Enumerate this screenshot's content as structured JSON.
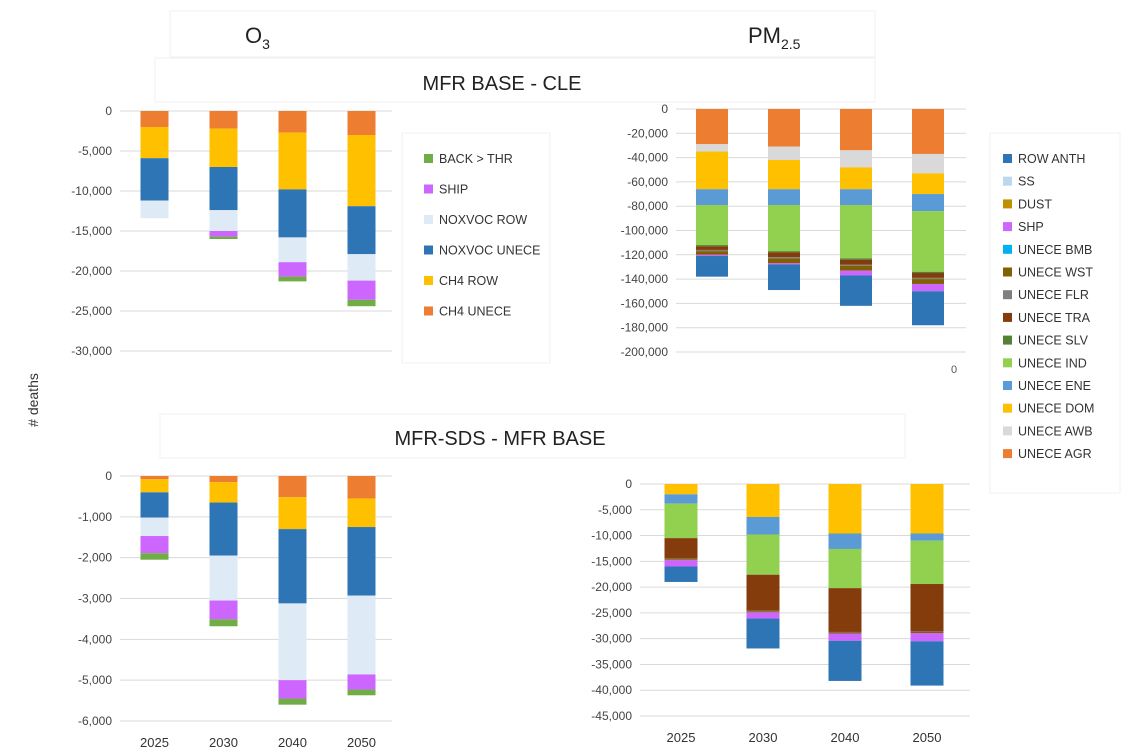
{
  "headings": {
    "o3": "O",
    "o3_sub": "3",
    "pm": "PM",
    "pm_sub": "2.5",
    "panel1_title": "MFR BASE - CLE",
    "panel2_title": "MFR-SDS - MFR BASE",
    "yaxis_label": "# deaths",
    "stray_tick": "0"
  },
  "colors": {
    "BACK > THR": "#70ad47",
    "SHIP": "#cc66ff",
    "NOXVOC ROW": "#deebf7",
    "NOXVOC UNECE": "#2e75b6",
    "CH4 ROW": "#ffc000",
    "CH4 UNECE": "#ed7d31",
    "ROW ANTH": "#2e75b6",
    "SS": "#bdd7ee",
    "DUST": "#bf9000",
    "SHP": "#cc66ff",
    "UNECE BMB": "#00b0f0",
    "UNECE WST": "#806000",
    "UNECE FLR": "#7f7f7f",
    "UNECE TRA": "#843c0c",
    "UNECE SLV": "#548235",
    "UNECE IND": "#92d050",
    "UNECE ENE": "#5b9bd5",
    "UNECE DOM": "#ffc000",
    "UNECE AWB": "#d9d9d9",
    "UNECE AGR": "#ed7d31"
  },
  "legends": {
    "o3": [
      "BACK > THR",
      "SHIP",
      "NOXVOC ROW",
      "NOXVOC UNECE",
      "CH4 ROW",
      "CH4 UNECE"
    ],
    "pm": [
      "ROW ANTH",
      "SS",
      "DUST",
      "SHP",
      "UNECE BMB",
      "UNECE WST",
      "UNECE FLR",
      "UNECE TRA",
      "UNECE SLV",
      "UNECE IND",
      "UNECE ENE",
      "UNECE DOM",
      "UNECE AWB",
      "UNECE AGR"
    ]
  },
  "chart_data": [
    {
      "id": "o3_base",
      "type": "bar",
      "stacked": true,
      "categories": [
        "2025",
        "2030",
        "2040",
        "2050"
      ],
      "ylim": [
        -30000,
        0
      ],
      "yticks": [
        0,
        -5000,
        -10000,
        -15000,
        -20000,
        -25000,
        -30000
      ],
      "ytick_labels": [
        "0",
        "-5,000",
        "-10,000",
        "-15,000",
        "-20,000",
        "-25,000",
        "-30,000"
      ],
      "show_xlabels": false,
      "grid": true,
      "series": [
        {
          "name": "CH4 UNECE",
          "values": [
            -2000,
            -2200,
            -2700,
            -3000
          ]
        },
        {
          "name": "CH4 ROW",
          "values": [
            -3900,
            -4800,
            -7100,
            -8900
          ]
        },
        {
          "name": "NOXVOC UNECE",
          "values": [
            -5300,
            -5400,
            -6000,
            -6000
          ]
        },
        {
          "name": "NOXVOC ROW",
          "values": [
            -2200,
            -2600,
            -3100,
            -3300
          ]
        },
        {
          "name": "SHIP",
          "values": [
            0,
            -700,
            -1800,
            -2400
          ]
        },
        {
          "name": "BACK > THR",
          "values": [
            0,
            -300,
            -600,
            -800
          ]
        }
      ]
    },
    {
      "id": "pm_base",
      "type": "bar",
      "stacked": true,
      "categories": [
        "2025",
        "2030",
        "2040",
        "2050"
      ],
      "ylim": [
        -200000,
        0
      ],
      "yticks": [
        0,
        -20000,
        -40000,
        -60000,
        -80000,
        -100000,
        -120000,
        -140000,
        -160000,
        -180000,
        -200000
      ],
      "ytick_labels": [
        "0",
        "-20,000",
        "-40,000",
        "-60,000",
        "-80,000",
        "-100,000",
        "-120,000",
        "-140,000",
        "-160,000",
        "-180,000",
        "-200,000"
      ],
      "show_xlabels": false,
      "grid": true,
      "series": [
        {
          "name": "UNECE AGR",
          "values": [
            -29000,
            -31000,
            -34000,
            -37000
          ]
        },
        {
          "name": "UNECE AWB",
          "values": [
            -6000,
            -11000,
            -14000,
            -16000
          ]
        },
        {
          "name": "UNECE DOM",
          "values": [
            -31000,
            -24000,
            -18000,
            -17000
          ]
        },
        {
          "name": "UNECE ENE",
          "values": [
            -13000,
            -13000,
            -13000,
            -14000
          ]
        },
        {
          "name": "UNECE IND",
          "values": [
            -33000,
            -38000,
            -44000,
            -50000
          ]
        },
        {
          "name": "UNECE SLV",
          "values": [
            -1000,
            -1000,
            -1000,
            -1000
          ]
        },
        {
          "name": "UNECE TRA",
          "values": [
            -3000,
            -4000,
            -4000,
            -4000
          ]
        },
        {
          "name": "UNECE FLR",
          "values": [
            -1000,
            -1000,
            -1000,
            -1000
          ]
        },
        {
          "name": "UNECE WST",
          "values": [
            -3000,
            -4000,
            -4000,
            -4000
          ]
        },
        {
          "name": "UNECE BMB",
          "values": [
            0,
            0,
            0,
            0
          ]
        },
        {
          "name": "SHP",
          "values": [
            -1000,
            -1000,
            -4000,
            -6000
          ]
        },
        {
          "name": "DUST",
          "values": [
            0,
            0,
            0,
            0
          ]
        },
        {
          "name": "SS",
          "values": [
            0,
            0,
            0,
            0
          ]
        },
        {
          "name": "ROW ANTH",
          "values": [
            -17000,
            -21000,
            -25000,
            -28000
          ]
        }
      ]
    },
    {
      "id": "o3_sds",
      "type": "bar",
      "stacked": true,
      "categories": [
        "2025",
        "2030",
        "2040",
        "2050"
      ],
      "ylim": [
        -6000,
        0
      ],
      "yticks": [
        0,
        -1000,
        -2000,
        -3000,
        -4000,
        -5000,
        -6000
      ],
      "ytick_labels": [
        "0",
        "-1,000",
        "-2,000",
        "-3,000",
        "-4,000",
        "-5,000",
        "-6,000"
      ],
      "show_xlabels": true,
      "grid": true,
      "series": [
        {
          "name": "CH4 UNECE",
          "values": [
            -80,
            -150,
            -520,
            -550
          ]
        },
        {
          "name": "CH4 ROW",
          "values": [
            -320,
            -500,
            -780,
            -700
          ]
        },
        {
          "name": "NOXVOC UNECE",
          "values": [
            -620,
            -1300,
            -1820,
            -1680
          ]
        },
        {
          "name": "NOXVOC ROW",
          "values": [
            -450,
            -1100,
            -1880,
            -1930
          ]
        },
        {
          "name": "SHIP",
          "values": [
            -420,
            -460,
            -450,
            -370
          ]
        },
        {
          "name": "BACK > THR",
          "values": [
            -160,
            -170,
            -150,
            -140
          ]
        }
      ]
    },
    {
      "id": "pm_sds",
      "type": "bar",
      "stacked": true,
      "categories": [
        "2025",
        "2030",
        "2040",
        "2050"
      ],
      "ylim": [
        -45000,
        0
      ],
      "yticks": [
        0,
        -5000,
        -10000,
        -15000,
        -20000,
        -25000,
        -30000,
        -35000,
        -40000,
        -45000
      ],
      "ytick_labels": [
        "0",
        "-5,000",
        "-10,000",
        "-15,000",
        "-20,000",
        "-25,000",
        "-30,000",
        "-35,000",
        "-40,000",
        "-45,000"
      ],
      "show_xlabels": true,
      "grid": true,
      "series": [
        {
          "name": "UNECE AGR",
          "values": [
            0,
            0,
            0,
            0
          ]
        },
        {
          "name": "UNECE AWB",
          "values": [
            0,
            0,
            0,
            0
          ]
        },
        {
          "name": "UNECE DOM",
          "values": [
            -2000,
            -6400,
            -9600,
            -9600
          ]
        },
        {
          "name": "UNECE ENE",
          "values": [
            -1800,
            -3400,
            -3000,
            -1400
          ]
        },
        {
          "name": "UNECE IND",
          "values": [
            -6700,
            -7800,
            -7600,
            -8400
          ]
        },
        {
          "name": "UNECE SLV",
          "values": [
            0,
            0,
            0,
            0
          ]
        },
        {
          "name": "UNECE TRA",
          "values": [
            -4000,
            -7000,
            -8500,
            -9200
          ]
        },
        {
          "name": "UNECE FLR",
          "values": [
            -100,
            -100,
            -100,
            -100
          ]
        },
        {
          "name": "UNECE WST",
          "values": [
            -200,
            -200,
            -200,
            -200
          ]
        },
        {
          "name": "UNECE BMB",
          "values": [
            0,
            0,
            0,
            0
          ]
        },
        {
          "name": "SHP",
          "values": [
            -1200,
            -1200,
            -1400,
            -1600
          ]
        },
        {
          "name": "DUST",
          "values": [
            0,
            0,
            0,
            0
          ]
        },
        {
          "name": "SS",
          "values": [
            0,
            0,
            0,
            0
          ]
        },
        {
          "name": "ROW ANTH",
          "values": [
            -3000,
            -5800,
            -7800,
            -8600
          ]
        }
      ]
    }
  ]
}
